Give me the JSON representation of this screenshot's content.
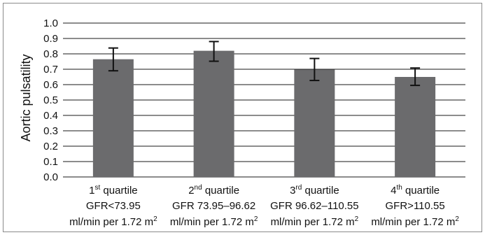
{
  "chart_data": {
    "type": "bar",
    "ylabel": "Aortic pulsatility",
    "ylim": [
      0,
      1.0
    ],
    "yticks": [
      "0.0",
      "0.1",
      "0.2",
      "0.3",
      "0.4",
      "0.5",
      "0.6",
      "0.7",
      "0.8",
      "0.9",
      "1.0"
    ],
    "categories": [
      {
        "ordinal": "1",
        "suffix": "st",
        "word": "quartile",
        "line2": "GFR<73.95",
        "line3": "ml/min per 1.72 m",
        "exp": "2"
      },
      {
        "ordinal": "2",
        "suffix": "nd",
        "word": "quartile",
        "line2": "GFR 73.95–96.62",
        "line3": "ml/min per 1.72 m",
        "exp": "2"
      },
      {
        "ordinal": "3",
        "suffix": "rd",
        "word": "quartile",
        "line2": "GFR 96.62–110.55",
        "line3": "ml/min per 1.72 m",
        "exp": "2"
      },
      {
        "ordinal": "4",
        "suffix": "th",
        "word": "quartile",
        "line2": "GFR>110.55",
        "line3": "ml/min per 1.72 m",
        "exp": "2"
      }
    ],
    "values": [
      0.765,
      0.82,
      0.698,
      0.65
    ],
    "error_low": [
      0.69,
      0.752,
      0.627,
      0.595
    ],
    "error_high": [
      0.838,
      0.88,
      0.77,
      0.708
    ],
    "grid": true,
    "bar_color": "#6b6b6d",
    "grid_color": "#1a1a1a"
  }
}
